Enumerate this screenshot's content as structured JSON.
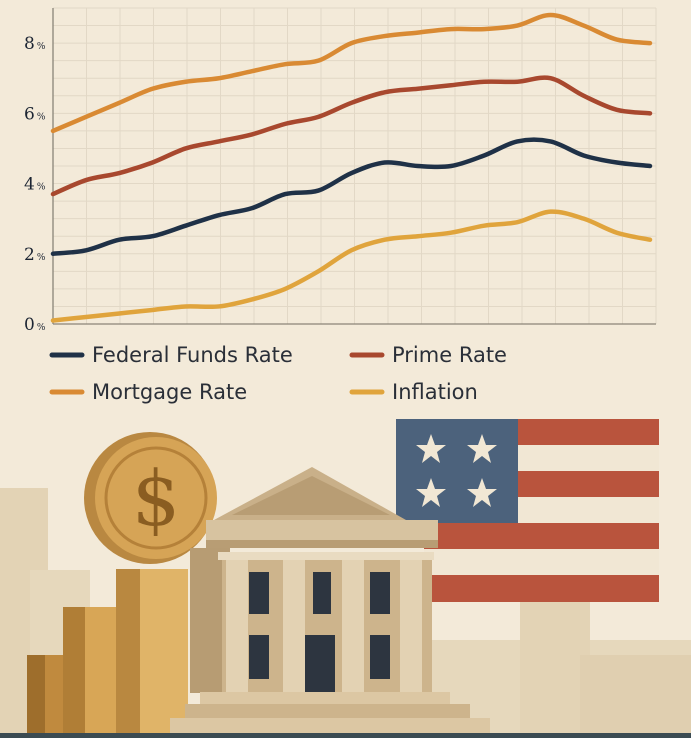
{
  "chart_data": {
    "type": "line",
    "title": "",
    "xlabel": "",
    "ylabel": "",
    "x": [
      1,
      2,
      3,
      4,
      5,
      6,
      7,
      8,
      9,
      10,
      11,
      12,
      13,
      14,
      15,
      16,
      17,
      18,
      19
    ],
    "ylim": [
      0,
      9
    ],
    "yticks": [
      {
        "value": 0,
        "label": "0",
        "unit": "%"
      },
      {
        "value": 2,
        "label": "2",
        "unit": "%"
      },
      {
        "value": 4,
        "label": "4",
        "unit": "%"
      },
      {
        "value": 6,
        "label": "6",
        "unit": "%"
      },
      {
        "value": 8,
        "label": "8",
        "unit": "%"
      }
    ],
    "grid": true,
    "series": [
      {
        "name": "Federal Funds Rate",
        "color": "#1f3147",
        "values": [
          2.0,
          2.1,
          2.4,
          2.5,
          2.8,
          3.1,
          3.3,
          3.7,
          3.8,
          4.3,
          4.6,
          4.5,
          4.5,
          4.8,
          5.2,
          5.2,
          4.8,
          4.6,
          4.5
        ]
      },
      {
        "name": "Prime Rate",
        "color": "#a8482e",
        "values": [
          3.7,
          4.1,
          4.3,
          4.6,
          5.0,
          5.2,
          5.4,
          5.7,
          5.9,
          6.3,
          6.6,
          6.7,
          6.8,
          6.9,
          6.9,
          7.0,
          6.5,
          6.1,
          6.0
        ]
      },
      {
        "name": "Mortgage Rate",
        "color": "#d98a33",
        "values": [
          5.5,
          5.9,
          6.3,
          6.7,
          6.9,
          7.0,
          7.2,
          7.4,
          7.5,
          8.0,
          8.2,
          8.3,
          8.4,
          8.4,
          8.5,
          8.8,
          8.5,
          8.1,
          8.0
        ]
      },
      {
        "name": "Inflation",
        "color": "#e0a43c",
        "values": [
          0.1,
          0.2,
          0.3,
          0.4,
          0.5,
          0.5,
          0.7,
          1.0,
          1.5,
          2.1,
          2.4,
          2.5,
          2.6,
          2.8,
          2.9,
          3.2,
          3.0,
          2.6,
          2.4
        ]
      }
    ],
    "legend_position": "bottom"
  },
  "illustration": {
    "coin_symbol": "$"
  }
}
